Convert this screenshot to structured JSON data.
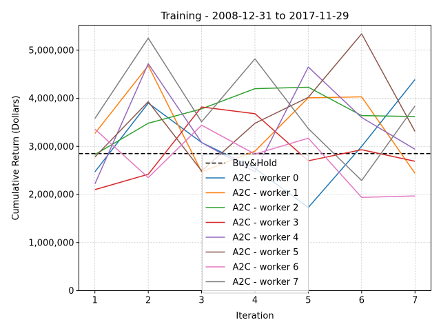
{
  "chart_data": {
    "type": "line",
    "title": "Training - 2008-12-31 to 2017-11-29",
    "xlabel": "Iteration",
    "ylabel": "Cumulative Return (Dollars)",
    "x": [
      1,
      2,
      3,
      4,
      5,
      6,
      7
    ],
    "xlim": [
      0.7,
      7.3
    ],
    "ylim": [
      0,
      5520000
    ],
    "yticks": [
      0,
      1000000,
      2000000,
      3000000,
      4000000,
      5000000
    ],
    "ytick_labels": [
      "0",
      "1,000,000",
      "2,000,000",
      "3,000,000",
      "4,000,000",
      "5,000,000"
    ],
    "xtick_labels": [
      "1",
      "2",
      "3",
      "4",
      "5",
      "6",
      "7"
    ],
    "grid": true,
    "legend_position": "lower-center",
    "baseline": {
      "name": "Buy&Hold",
      "value": 2850000,
      "color": "#000000",
      "style": "dashed"
    },
    "series": [
      {
        "name": "A2C - worker 0",
        "color": "#1f77b4",
        "values": [
          2470000,
          3900000,
          3080000,
          2540000,
          1730000,
          3000000,
          4390000
        ]
      },
      {
        "name": "A2C - worker 1",
        "color": "#ff7f0e",
        "values": [
          3270000,
          4680000,
          2470000,
          2900000,
          4010000,
          4030000,
          2440000
        ]
      },
      {
        "name": "A2C - worker 2",
        "color": "#2ca02c",
        "values": [
          2830000,
          3480000,
          3780000,
          4200000,
          4230000,
          3640000,
          3620000
        ]
      },
      {
        "name": "A2C - worker 3",
        "color": "#d62728",
        "values": [
          2100000,
          2420000,
          3820000,
          3680000,
          2700000,
          2930000,
          2690000
        ]
      },
      {
        "name": "A2C - worker 4",
        "color": "#9467bd",
        "values": [
          2220000,
          4720000,
          3080000,
          2470000,
          4650000,
          3600000,
          2940000
        ]
      },
      {
        "name": "A2C - worker 5",
        "color": "#8c564b",
        "values": [
          2780000,
          3930000,
          2490000,
          3480000,
          4020000,
          5340000,
          3310000
        ]
      },
      {
        "name": "A2C - worker 6",
        "color": "#e377c2",
        "values": [
          3360000,
          2350000,
          3440000,
          2840000,
          3170000,
          1940000,
          1970000
        ]
      },
      {
        "name": "A2C - worker 7",
        "color": "#7f7f7f",
        "values": [
          3580000,
          5250000,
          3510000,
          4820000,
          3370000,
          2290000,
          3840000
        ]
      }
    ]
  }
}
